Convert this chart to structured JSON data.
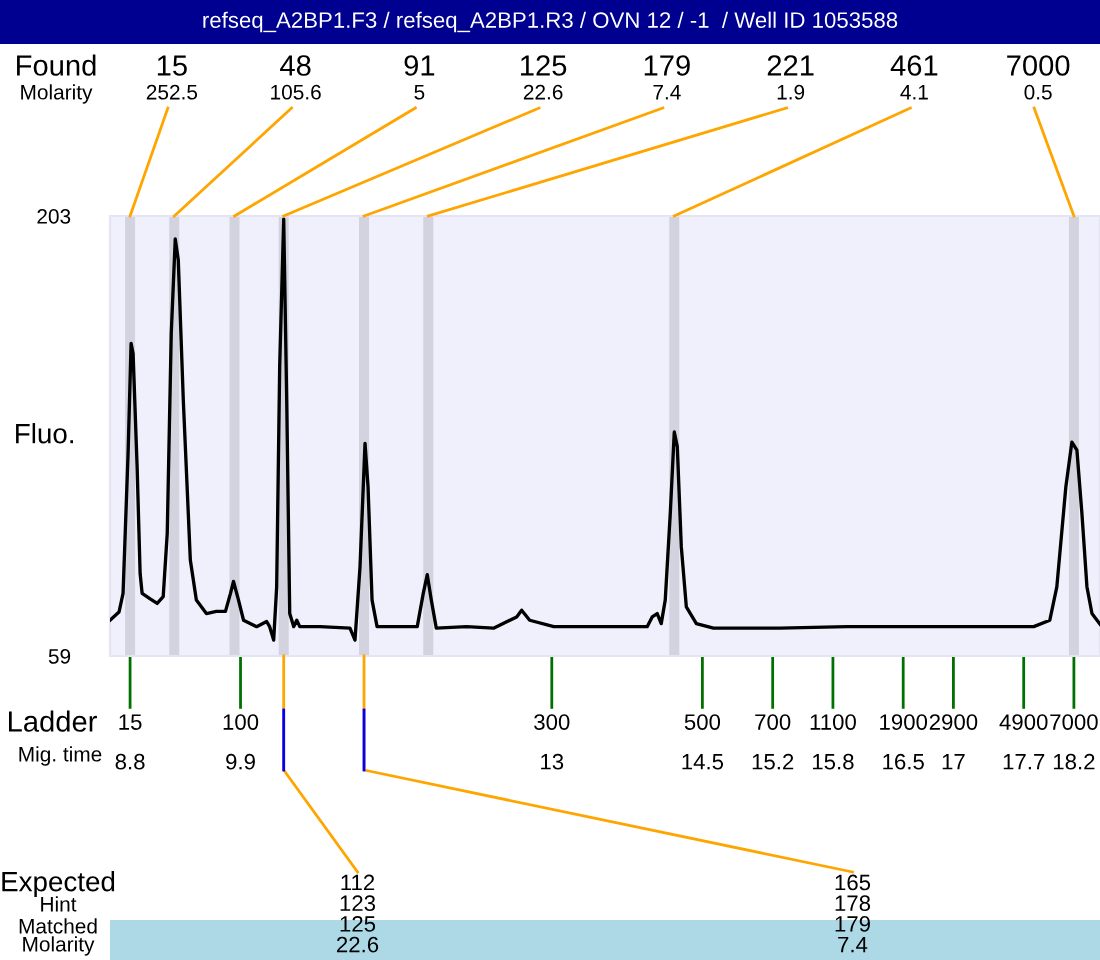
{
  "chart_data": {
    "type": "line",
    "title": "refseq_A2BP1.F3 / refseq_A2BP1.R3 / OVN 12 / -1  / Well ID 1053588",
    "ylabel": "Fluo.",
    "xlim": [
      8.6,
      18.46
    ],
    "ylim": [
      59,
      203
    ],
    "yticks": [
      59,
      203
    ],
    "xticks": [
      8.8,
      9.9,
      13,
      14.5,
      15.2,
      15.8,
      16.5,
      17,
      17.7,
      18.2
    ],
    "grid": false,
    "legend": false,
    "series": [
      {
        "color": "#000000",
        "x": [
          8.6,
          8.69,
          8.73,
          8.78,
          8.81,
          8.83,
          8.87,
          8.9,
          8.92,
          9.0,
          9.07,
          9.13,
          9.17,
          9.21,
          9.25,
          9.28,
          9.33,
          9.4,
          9.46,
          9.56,
          9.66,
          9.75,
          9.8,
          9.83,
          9.88,
          9.93,
          10.06,
          10.16,
          10.19,
          10.23,
          10.26,
          10.29,
          10.33,
          10.36,
          10.39,
          10.43,
          10.46,
          10.49,
          10.69,
          10.99,
          11.04,
          11.09,
          11.14,
          11.17,
          11.21,
          11.26,
          11.42,
          11.66,
          11.72,
          11.76,
          11.8,
          11.85,
          12.15,
          12.42,
          12.65,
          12.7,
          12.78,
          13.02,
          13.48,
          13.95,
          14.0,
          14.05,
          14.09,
          14.13,
          14.18,
          14.22,
          14.25,
          14.29,
          14.34,
          14.44,
          14.61,
          15.27,
          15.94,
          16.6,
          17.27,
          17.8,
          17.96,
          18.03,
          18.12,
          18.18,
          18.23,
          18.28,
          18.33,
          18.38,
          18.46
        ],
        "values": [
          70.7,
          73.4,
          79.5,
          125.3,
          161.3,
          158.0,
          120.9,
          86.0,
          79.5,
          77.7,
          76.2,
          78.4,
          99.1,
          164.6,
          195.5,
          188.6,
          142.8,
          90.4,
          77.3,
          72.9,
          73.6,
          73.6,
          79.5,
          83.4,
          77.3,
          70.7,
          68.6,
          70.3,
          68.6,
          64.2,
          81.6,
          153.7,
          202.0,
          142.8,
          72.9,
          68.6,
          70.7,
          68.6,
          68.6,
          68.1,
          64.2,
          88.2,
          128.6,
          114.4,
          77.3,
          68.6,
          68.6,
          68.6,
          79.5,
          85.6,
          77.3,
          68.1,
          68.6,
          68.1,
          71.8,
          74.0,
          70.7,
          68.6,
          68.6,
          68.6,
          71.8,
          72.9,
          69.6,
          77.3,
          105.6,
          132.3,
          127.5,
          94.7,
          75.1,
          69.6,
          68.1,
          68.1,
          68.6,
          68.6,
          68.6,
          68.6,
          70.7,
          81.6,
          114.4,
          129.0,
          126.4,
          105.6,
          81.6,
          72.9,
          69.4
        ]
      }
    ],
    "bands": [
      {
        "axis": "x",
        "from": 8.75,
        "to": 8.85,
        "color": "#d3d3e0"
      },
      {
        "axis": "x",
        "from": 9.19,
        "to": 9.29,
        "color": "#d3d3e0"
      },
      {
        "axis": "x",
        "from": 9.79,
        "to": 9.89,
        "color": "#d3d3e0"
      },
      {
        "axis": "x",
        "from": 10.28,
        "to": 10.38,
        "color": "#d3d3e0"
      },
      {
        "axis": "x",
        "from": 11.08,
        "to": 11.18,
        "color": "#d3d3e0"
      },
      {
        "axis": "x",
        "from": 11.72,
        "to": 11.82,
        "color": "#d3d3e0"
      },
      {
        "axis": "x",
        "from": 14.17,
        "to": 14.27,
        "color": "#d3d3e0"
      },
      {
        "axis": "x",
        "from": 18.15,
        "to": 18.25,
        "color": "#d3d3e0"
      }
    ],
    "annotations": [
      "Found",
      "Molarity",
      "Ladder",
      "Mig. time",
      "Expected",
      "Hint",
      "Matched",
      "Molarity",
      "15",
      "100",
      "300",
      "500",
      "700",
      "1100",
      "1900",
      "2900",
      "4900",
      "7000",
      {
        "text": "15\n252.5",
        "x": 8.8,
        "y": 203
      },
      {
        "text": "48\n105.6",
        "x": 9.24,
        "y": 203
      },
      {
        "text": "91\n5",
        "x": 9.84,
        "y": 203
      },
      {
        "text": "125\n22.6",
        "x": 10.33,
        "y": 203
      },
      {
        "text": "179\n7.4",
        "x": 11.13,
        "y": 203
      },
      {
        "text": "221\n1.9",
        "x": 11.77,
        "y": 203
      },
      {
        "text": "461\n4.1",
        "x": 14.22,
        "y": 203
      },
      {
        "text": "7000\n0.5",
        "x": 18.2,
        "y": 203
      },
      {
        "text": "112\n123\n125\n22.6",
        "x": 10.33,
        "y": 59
      },
      {
        "text": "165\n178\n179\n7.4",
        "x": 11.13,
        "y": 59
      }
    ]
  }
}
